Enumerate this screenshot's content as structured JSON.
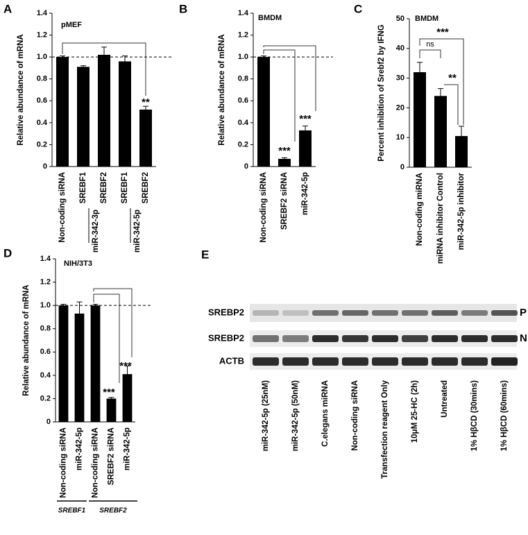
{
  "chart_data": [
    {
      "panel": "A",
      "type": "bar",
      "title": "pMEF",
      "y_label": "Relative abundance of mRNA",
      "categories": [
        "Non-coding siRNA",
        "SREBF1",
        "SREBF2",
        "SREBF1",
        "SREBF2"
      ],
      "group_labels": [
        "miR-342-3p",
        "miR-342-5p"
      ],
      "values": [
        1.0,
        0.91,
        1.02,
        0.96,
        0.52
      ],
      "errors": [
        0.01,
        0.01,
        0.07,
        0.05,
        0.03
      ],
      "color": "#000000",
      "ylim": [
        0,
        1.4
      ],
      "yticks": [
        0,
        0.2,
        0.4,
        0.6,
        0.8,
        {
          "value": 1,
          "label": "1.0"
        },
        1.2,
        1.4
      ],
      "reference_line": 1,
      "annotations": [
        "**"
      ]
    },
    {
      "panel": "B",
      "type": "bar",
      "title": "BMDM",
      "y_label": "Relative abundance of mRNA",
      "categories": [
        "Non-coding siRNA",
        "SREBF2 siRNA",
        "miR-342-5p"
      ],
      "values": [
        1.0,
        0.07,
        0.33
      ],
      "errors": [
        0.01,
        0.01,
        0.04
      ],
      "color": "#000000",
      "ylim": [
        0,
        1.4
      ],
      "yticks": [
        0,
        0.2,
        0.4,
        0.6,
        0.8,
        {
          "value": 1,
          "label": "1.0"
        },
        1.2,
        1.4
      ],
      "reference_line": 1,
      "annotations": [
        "***",
        "***"
      ]
    },
    {
      "panel": "C",
      "type": "bar",
      "title": "BMDM",
      "y_label": "Percent inhibition of Srebf2 by IFNG",
      "categories": [
        "Non-coding miRNA",
        "miRNA inhibitor Control",
        "miR-342-5p inhibitor"
      ],
      "values": [
        32,
        24,
        10.5
      ],
      "errors": [
        3.3,
        2.5,
        3.3
      ],
      "color": "#000000",
      "ylim": [
        0,
        50
      ],
      "yticks": [
        0,
        10,
        20,
        30,
        40,
        50
      ],
      "annotations": [
        "ns",
        "***",
        "**"
      ]
    },
    {
      "panel": "D",
      "type": "bar",
      "title": "NIH/3T3",
      "y_label": "Relative abundance of mRNA",
      "categories": [
        "Non-coding siRNA",
        "miR-342-5p",
        "Non-coding siRNA",
        "SREBF2 siRNA",
        "miR-342-5p"
      ],
      "group_labels": [
        "SREBF1",
        "SREBF2"
      ],
      "values": [
        1.0,
        0.93,
        1.0,
        0.2,
        0.41
      ],
      "errors": [
        0.01,
        0.1,
        0.01,
        0.01,
        0.07
      ],
      "color": "#000000",
      "ylim": [
        0,
        1.4
      ],
      "yticks": [
        0,
        0.2,
        0.4,
        0.6,
        0.8,
        {
          "value": 1,
          "label": "1.0"
        },
        1.2,
        1.4
      ],
      "reference_line": 1,
      "annotations": [
        "***",
        "***"
      ]
    }
  ],
  "blot": {
    "panel": "E",
    "rows": [
      "SREBP2",
      "SREBP2",
      "ACTB"
    ],
    "row_tags": [
      "P",
      "N"
    ],
    "lanes": [
      "miR-342-5p (25nM)",
      "miR-342-5p (50nM)",
      "C.elegans miRNA",
      "Non-coding siRNA",
      "Transfection reagent Only",
      "10μM 25-HC (2h)",
      "Untreated",
      "1% HβCD (30mins)",
      "1% HβCD (60mins)"
    ]
  }
}
